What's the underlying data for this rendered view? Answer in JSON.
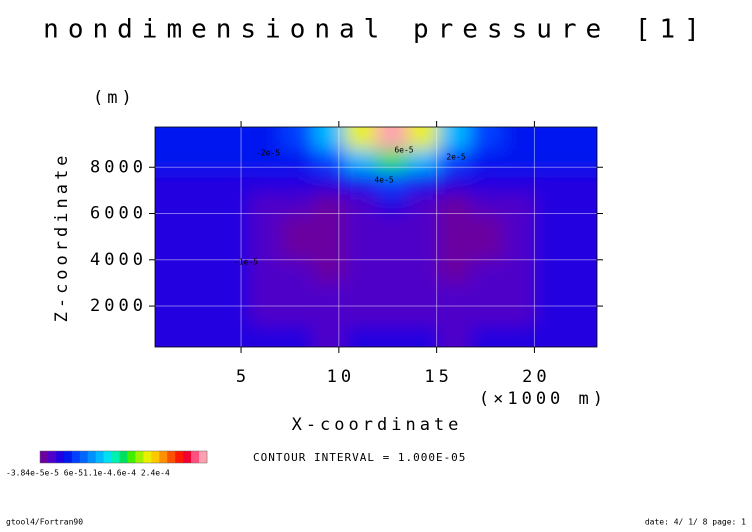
{
  "chart_data": {
    "type": "contour",
    "title": "nondimensional pressure [1]",
    "xlabel": "X-coordinate",
    "xunit": "(×1000 m)",
    "ylabel": "Z-coordinate",
    "yunit": "(m)",
    "xlim": [
      0.6,
      23.2
    ],
    "ylim": [
      230,
      9740
    ],
    "xticks": [
      5,
      10,
      15,
      20
    ],
    "yticks": [
      2000,
      4000,
      6000,
      8000
    ],
    "grid": true,
    "x": [
      1.41,
      3.03,
      4.64,
      6.26,
      7.87,
      9.49,
      11.1,
      12.7,
      14.3,
      15.9,
      17.5,
      19.2,
      20.8,
      22.4
    ],
    "y": [
      705,
      1656,
      2607,
      3558,
      4509,
      5460,
      6411,
      7362,
      8313,
      9264
    ],
    "z": [
      [
        -5e-06,
        -5e-06,
        -5e-06,
        -8e-06,
        -1e-05,
        -1.3e-05,
        -1.1e-05,
        -1e-05,
        -1.1e-05,
        -1.3e-05,
        -1e-05,
        -8e-06,
        -5e-06,
        -5e-06
      ],
      [
        -6e-06,
        -6e-06,
        -6e-06,
        -1.2e-05,
        -1.5e-05,
        -1.8e-05,
        -1.5e-05,
        -1.3e-05,
        -1.5e-05,
        -1.8e-05,
        -1.5e-05,
        -1.2e-05,
        -6e-06,
        -6e-06
      ],
      [
        -6e-06,
        -6e-06,
        -6e-06,
        -1.3e-05,
        -2e-05,
        -2.4e-05,
        -1.9e-05,
        -1.6e-05,
        -1.9e-05,
        -2.4e-05,
        -2e-05,
        -1.3e-05,
        -6e-06,
        -6e-06
      ],
      [
        -6e-06,
        -6e-06,
        -6e-06,
        -1.5e-05,
        -2.4e-05,
        -3e-05,
        -2.3e-05,
        -1.8e-05,
        -2.3e-05,
        -3e-05,
        -2.4e-05,
        -1.5e-05,
        -6e-06,
        -6e-06
      ],
      [
        -6e-06,
        -6e-06,
        -6e-06,
        -1.6e-05,
        -2.8e-05,
        -3.6e-05,
        -2.5e-05,
        -1.8e-05,
        -2.5e-05,
        -3.6e-05,
        -2.8e-05,
        -1.6e-05,
        -6e-06,
        -6e-06
      ],
      [
        -6e-06,
        -6e-06,
        -6e-06,
        -1.6e-05,
        -2.8e-05,
        -3.84e-05,
        -2.4e-05,
        -1.5e-05,
        -2.4e-05,
        -3.84e-05,
        -2.8e-05,
        -1.6e-05,
        -6e-06,
        -6e-06
      ],
      [
        -5e-06,
        -5e-06,
        -5e-06,
        -1.2e-05,
        -2e-05,
        -2.6e-05,
        -1.4e-05,
        -5e-06,
        -1.4e-05,
        -2.6e-05,
        -2e-05,
        -1.2e-05,
        -5e-06,
        -5e-06
      ],
      [
        -3e-06,
        -3e-06,
        -3e-06,
        -5e-06,
        -6e-06,
        -8e-06,
        5e-06,
        2e-05,
        5e-06,
        -8e-06,
        -6e-06,
        -5e-06,
        -3e-06,
        -3e-06
      ],
      [
        2e-06,
        2e-06,
        2e-06,
        5e-06,
        1e-05,
        2e-05,
        6e-05,
        0.0001,
        6e-05,
        2e-05,
        1e-05,
        5e-06,
        2e-06,
        2e-06
      ],
      [
        6e-06,
        6e-06,
        6e-06,
        1.2e-05,
        2e-05,
        6e-05,
        0.00014,
        0.00024,
        0.00014,
        6e-05,
        2e-05,
        1.2e-05,
        6e-06,
        6e-06
      ]
    ],
    "clim": [
      -3.84e-05,
      0.00024
    ],
    "colormap": [
      "#6a00a0",
      "#5000c8",
      "#2000e0",
      "#0018f0",
      "#0040ff",
      "#0066ff",
      "#0090ff",
      "#00b8ff",
      "#00e0f0",
      "#00f0b0",
      "#00e060",
      "#40f000",
      "#a0f000",
      "#e8f000",
      "#ffc800",
      "#ff9000",
      "#ff5000",
      "#ff1800",
      "#f00030",
      "#ff5080",
      "#ffa0b0"
    ],
    "colorbar_label": "-3.84e-5e-5 6e-51.1e-4.6e-4  2.4e-4",
    "annotations": [
      "-2e-5",
      "2e-5",
      "4e-5",
      "6e-5",
      "-1e-5"
    ],
    "contour_interval": "CONTOUR INTERVAL = 1.000E-05",
    "footer_left": "gtool4/Fortran90",
    "footer_right": "date: 4/ 1/ 8 page: 1"
  }
}
